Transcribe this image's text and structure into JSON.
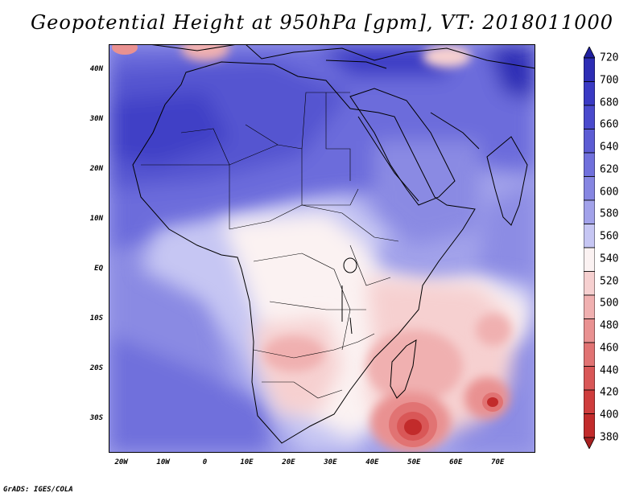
{
  "title": "Geopotential Height at 950hPa [gpm], VT: 2018011000",
  "credit": "GrADS: IGES/COLA",
  "map": {
    "lon_range": [
      -23,
      79
    ],
    "lat_range": [
      -37,
      45
    ],
    "lat_ticks": [
      {
        "value": 40,
        "label": "40N"
      },
      {
        "value": 30,
        "label": "30N"
      },
      {
        "value": 20,
        "label": "20N"
      },
      {
        "value": 10,
        "label": "10N"
      },
      {
        "value": 0,
        "label": "EQ"
      },
      {
        "value": -10,
        "label": "10S"
      },
      {
        "value": -20,
        "label": "20S"
      },
      {
        "value": -30,
        "label": "30S"
      }
    ],
    "lon_ticks": [
      {
        "value": -20,
        "label": "20W"
      },
      {
        "value": -10,
        "label": "10W"
      },
      {
        "value": 0,
        "label": "0"
      },
      {
        "value": 10,
        "label": "10E"
      },
      {
        "value": 20,
        "label": "20E"
      },
      {
        "value": 30,
        "label": "30E"
      },
      {
        "value": 40,
        "label": "40E"
      },
      {
        "value": 50,
        "label": "50E"
      },
      {
        "value": 60,
        "label": "60E"
      },
      {
        "value": 70,
        "label": "70E"
      }
    ]
  },
  "colorbar": {
    "labels": [
      "720",
      "700",
      "680",
      "660",
      "640",
      "620",
      "600",
      "580",
      "560",
      "540",
      "520",
      "500",
      "480",
      "460",
      "440",
      "420",
      "400",
      "380"
    ],
    "colors": [
      "#2020a0",
      "#2d2db5",
      "#3a3ac4",
      "#4a4acd",
      "#5c5cd4",
      "#7070dc",
      "#8686e2",
      "#a2a2ea",
      "#c6c6f3",
      "#fbf2f2",
      "#f6d0d0",
      "#f0b0b0",
      "#e99191",
      "#e17373",
      "#d95757",
      "#cf3d3d",
      "#c22b2b",
      "#a82020"
    ]
  },
  "legend_colors": {
    "high": "#2d2db5",
    "mid": "#ffffff",
    "low": "#c22b2b"
  }
}
